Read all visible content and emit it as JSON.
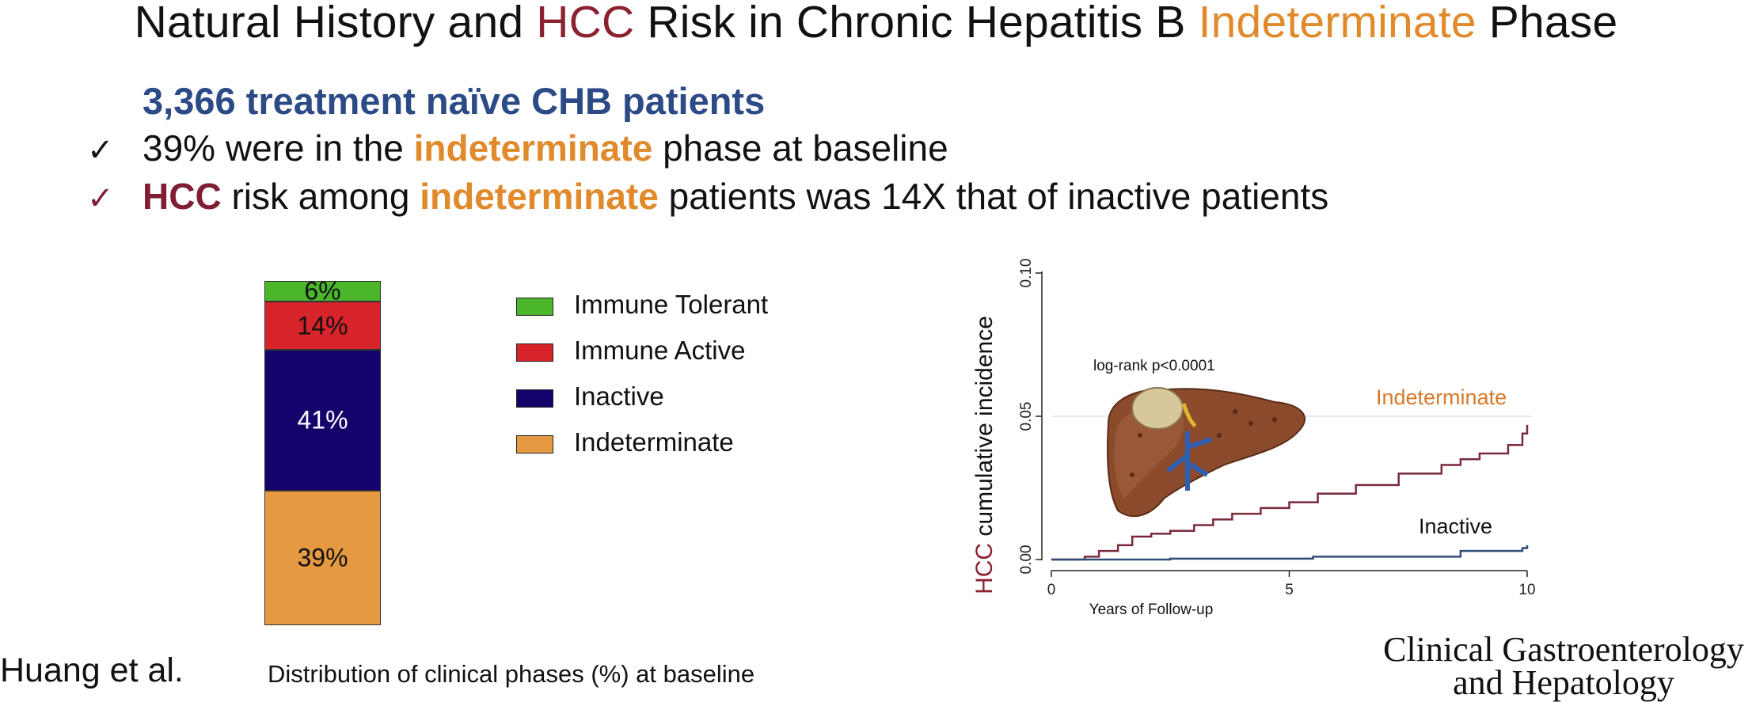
{
  "title": {
    "part1": "Natural History and ",
    "hcc": "HCC",
    "part2": " Risk in Chronic Hepatitis B ",
    "indeterminate": "Indeterminate",
    "part3": " Phase"
  },
  "subtitle": "3,366 treatment naïve CHB patients",
  "bullets": [
    {
      "check": "✓",
      "pre": "39% were in the ",
      "highlight": "indeterminate",
      "post": " phase at baseline"
    },
    {
      "check": "✓",
      "hcc": "HCC",
      "mid": " risk among ",
      "highlight": "indeterminate",
      "post": " patients was 14X that of inactive patients"
    }
  ],
  "colors": {
    "immune_tolerant": "#4cb62b",
    "immune_active": "#d7242b",
    "inactive": "#13036b",
    "indeterminate": "#e59a42",
    "km_indeterminate": "#7a2a3a",
    "km_inactive": "#2f4f78"
  },
  "chart_data": [
    {
      "type": "bar",
      "stacked": true,
      "title": "Distribution of clinical phases (%) at baseline",
      "series": [
        {
          "name": "Indeterminate",
          "value": 39,
          "label": "39%",
          "color": "#e59a42"
        },
        {
          "name": "Inactive",
          "value": 41,
          "label": "41%",
          "color": "#13036b"
        },
        {
          "name": "Immune Active",
          "value": 14,
          "label": "14%",
          "color": "#d7242b"
        },
        {
          "name": "Immune Tolerant",
          "value": 6,
          "label": "6%",
          "color": "#4cb62b"
        }
      ],
      "legend": [
        "Immune Tolerant",
        "Immune Active",
        "Inactive",
        "Indeterminate"
      ],
      "legend_position": "right"
    },
    {
      "type": "line",
      "step": true,
      "ylabel_prefix": "HCC",
      "ylabel_rest": " cumulative incidence",
      "xlabel": "Years of Follow-up",
      "xlim": [
        0,
        10
      ],
      "ylim": [
        0,
        0.1
      ],
      "xticks": [
        "0",
        "5",
        "10"
      ],
      "yticks": [
        "0.00",
        "0.05",
        "0.10"
      ],
      "annotation": "log-rank p<0.0001",
      "series": [
        {
          "name": "Indeterminate",
          "color": "#7a2a3a",
          "x": [
            0,
            0.7,
            1.0,
            1.4,
            1.7,
            2.1,
            2.5,
            3.0,
            3.4,
            3.8,
            4.4,
            5.0,
            5.6,
            6.4,
            7.3,
            8.2,
            8.6,
            9.0,
            9.6,
            9.9,
            10.0
          ],
          "y": [
            0,
            0.001,
            0.003,
            0.005,
            0.008,
            0.009,
            0.01,
            0.012,
            0.014,
            0.016,
            0.018,
            0.02,
            0.023,
            0.026,
            0.03,
            0.033,
            0.035,
            0.037,
            0.04,
            0.044,
            0.047
          ]
        },
        {
          "name": "Inactive",
          "color": "#2f4f78",
          "x": [
            0,
            2.5,
            5.5,
            8.6,
            9.9,
            10.0
          ],
          "y": [
            0,
            0.0003,
            0.001,
            0.003,
            0.004,
            0.005
          ]
        }
      ]
    }
  ],
  "captions": {
    "author": "Huang et al.",
    "journal_line1": "Clinical Gastroenterology",
    "journal_line2": "and Hepatology"
  }
}
